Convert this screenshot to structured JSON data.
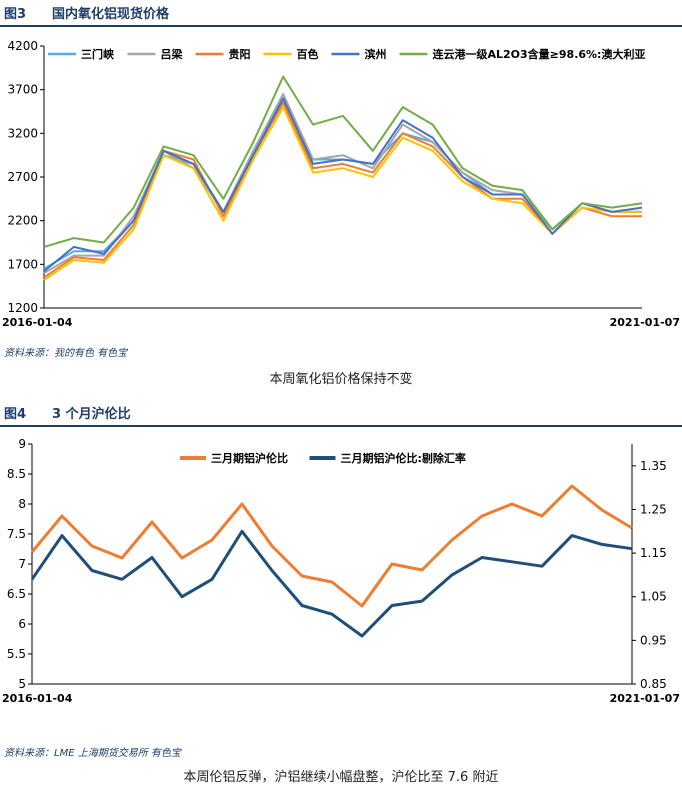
{
  "figure3": {
    "num": "图3",
    "title": "国内氧化铝现货价格",
    "source": "资料来源：我的有色   有色宝",
    "caption": "本周氧化铝价格保持不变"
  },
  "figure4": {
    "num": "图4",
    "title": "3 个月沪伦比",
    "source": "资料来源：LME   上海期货交易所   有色宝",
    "caption": "本周伦铝反弹，沪铝继续小幅盘整，沪伦比至 7.6 附近"
  },
  "chart_data": [
    {
      "type": "line",
      "x_start": "2016-01-04",
      "x_end": "2021-01-07",
      "ylim": [
        1200,
        4200
      ],
      "yticks": [
        1200,
        1700,
        2200,
        2700,
        3200,
        3700,
        4200
      ],
      "grid": false,
      "legend_position": "top",
      "x": [
        2016.0,
        2016.25,
        2016.5,
        2016.75,
        2017.0,
        2017.25,
        2017.5,
        2017.75,
        2018.0,
        2018.25,
        2018.5,
        2018.75,
        2019.0,
        2019.25,
        2019.5,
        2019.75,
        2020.0,
        2020.25,
        2020.5,
        2020.75,
        2021.0
      ],
      "series": [
        {
          "name": "三门峡",
          "color": "#5aa9e6",
          "values": [
            1650,
            1850,
            1850,
            2200,
            2950,
            2850,
            2300,
            3000,
            3600,
            2900,
            2900,
            2850,
            3200,
            3100,
            2750,
            2500,
            2500,
            2100,
            2400,
            2300,
            2300
          ]
        },
        {
          "name": "吕梁",
          "color": "#a6a6a6",
          "values": [
            1600,
            1800,
            1800,
            2250,
            3000,
            2800,
            2300,
            3000,
            3650,
            2900,
            2950,
            2800,
            3300,
            3100,
            2750,
            2550,
            2500,
            2100,
            2400,
            2300,
            2300
          ]
        },
        {
          "name": "贵阳",
          "color": "#ed7d31",
          "values": [
            1550,
            1780,
            1750,
            2150,
            3000,
            2900,
            2250,
            2950,
            3550,
            2800,
            2850,
            2750,
            3200,
            3050,
            2700,
            2450,
            2450,
            2050,
            2350,
            2250,
            2250
          ]
        },
        {
          "name": "百色",
          "color": "#ffc000",
          "values": [
            1520,
            1750,
            1720,
            2100,
            2950,
            2800,
            2200,
            2900,
            3500,
            2750,
            2800,
            2700,
            3150,
            3000,
            2650,
            2450,
            2400,
            2050,
            2350,
            2300,
            2300
          ]
        },
        {
          "name": "滨州",
          "color": "#4472c4",
          "values": [
            1620,
            1900,
            1820,
            2200,
            3000,
            2850,
            2300,
            2950,
            3600,
            2850,
            2900,
            2850,
            3350,
            3150,
            2700,
            2500,
            2500,
            2050,
            2400,
            2300,
            2350
          ]
        },
        {
          "name": "连云港一级AL2O3含量≥98.6%:澳大利亚",
          "color": "#70ad47",
          "values": [
            1900,
            2000,
            1950,
            2350,
            3050,
            2950,
            2450,
            3100,
            3850,
            3300,
            3400,
            3000,
            3500,
            3300,
            2800,
            2600,
            2550,
            2100,
            2400,
            2350,
            2400
          ]
        }
      ]
    },
    {
      "type": "line",
      "x_start": "2016-01-04",
      "x_end": "2021-01-07",
      "ylim": [
        5,
        9
      ],
      "yticks": [
        5,
        5.5,
        6,
        6.5,
        7,
        7.5,
        8,
        8.5,
        9
      ],
      "y2lim": [
        0.85,
        1.4
      ],
      "y2ticks": [
        0.85,
        0.95,
        1.05,
        1.15,
        1.25,
        1.35
      ],
      "grid": false,
      "legend_position": "top",
      "x": [
        2016.0,
        2016.25,
        2016.5,
        2016.75,
        2017.0,
        2017.25,
        2017.5,
        2017.75,
        2018.0,
        2018.25,
        2018.5,
        2018.75,
        2019.0,
        2019.25,
        2019.5,
        2019.75,
        2020.0,
        2020.25,
        2020.5,
        2020.75,
        2021.0
      ],
      "series": [
        {
          "name": "三月期铝沪伦比",
          "color": "#ed7d31",
          "axis": "left",
          "values": [
            7.2,
            7.8,
            7.3,
            7.1,
            7.7,
            7.1,
            7.4,
            8.0,
            7.3,
            6.8,
            6.7,
            6.3,
            7.0,
            6.9,
            7.4,
            7.8,
            8.0,
            7.8,
            8.3,
            7.9,
            7.6
          ]
        },
        {
          "name": "三月期铝沪伦比:剔除汇率",
          "color": "#1f4e79",
          "axis": "right",
          "values": [
            1.09,
            1.19,
            1.11,
            1.09,
            1.14,
            1.05,
            1.09,
            1.2,
            1.11,
            1.03,
            1.01,
            0.96,
            1.03,
            1.04,
            1.1,
            1.14,
            1.13,
            1.12,
            1.19,
            1.17,
            1.16
          ]
        }
      ]
    }
  ]
}
